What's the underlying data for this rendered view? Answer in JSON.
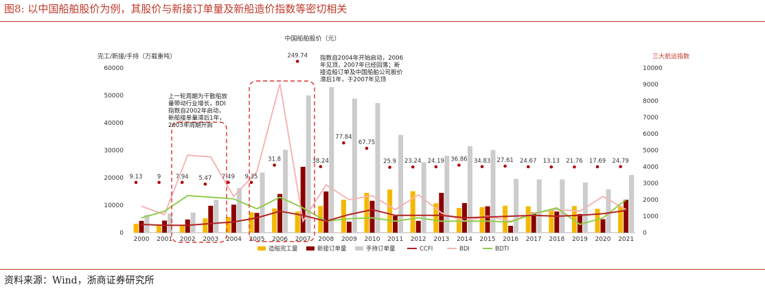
{
  "header": {
    "title": "图8:  以中国船舶股价为例，其股价与新接订单量及新船造价指数等密切相关"
  },
  "footer": {
    "source": "资料来源：Wind，浙商证券研究所"
  },
  "colors": {
    "completed": "#f5b800",
    "new_orders": "#8b0000",
    "orderbook": "#cccccc",
    "ccfi": "#b22222",
    "bdi": "#f4b6b6",
    "bdti": "#8fce4a",
    "stock_dot": "#b00000",
    "accent": "#c0392b",
    "box": "#d9302a"
  },
  "chart_data": {
    "type": "bar",
    "title": "",
    "x": [
      "2000",
      "2001",
      "2002",
      "2003",
      "2004",
      "2005",
      "2006",
      "2007",
      "2008",
      "2009",
      "2010",
      "2011",
      "2012",
      "2013",
      "2014",
      "2015",
      "2016",
      "2017",
      "2018",
      "2019",
      "2020",
      "2021"
    ],
    "ylabel_left": "完工/新接/手持（万载重吨）",
    "ylabel_right": "三大航运指数",
    "ylim_left": [
      0,
      60000
    ],
    "ylim_right": [
      0,
      10000
    ],
    "yticks_left": [
      "0",
      "10000",
      "20000",
      "30000",
      "40000",
      "50000",
      "60000"
    ],
    "yticks_right": [
      "0",
      "1000",
      "2000",
      "3000",
      "4000",
      "5000",
      "6000",
      "7000",
      "8000",
      "9000",
      "10000"
    ],
    "stock_label": "中国船舶股价（元）",
    "series": [
      {
        "name": "造船完工量",
        "kind": "bar",
        "axis": "left",
        "values": [
          3200,
          3000,
          2700,
          5200,
          5700,
          7400,
          8800,
          7700,
          9700,
          12000,
          14500,
          15700,
          15100,
          10700,
          9000,
          9300,
          9800,
          9600,
          8000,
          9700,
          8700,
          9700
        ]
      },
      {
        "name": "新接订单量",
        "kind": "bar",
        "axis": "left",
        "values": [
          4300,
          4400,
          4800,
          9800,
          10200,
          7200,
          14100,
          24000,
          15000,
          4000,
          11600,
          6100,
          4300,
          14500,
          10800,
          9600,
          2500,
          7400,
          7700,
          6800,
          4900,
          12000
        ]
      },
      {
        "name": "手持订单量",
        "kind": "bar",
        "axis": "left",
        "values": [
          6500,
          7000,
          7300,
          12000,
          16200,
          21900,
          30200,
          50000,
          53000,
          48800,
          47200,
          35600,
          25600,
          28000,
          31500,
          30100,
          19600,
          19400,
          19400,
          18300,
          15800,
          21000
        ]
      },
      {
        "name": "CCFI",
        "kind": "line",
        "axis": "right",
        "values": [
          500,
          450,
          450,
          550,
          650,
          900,
          1300,
          1050,
          700,
          1100,
          1400,
          1050,
          1050,
          1050,
          900,
          950,
          1000,
          1050,
          1000,
          1050,
          1150,
          1350
        ]
      },
      {
        "name": "BDI",
        "kind": "line",
        "axis": "right",
        "values": [
          1600,
          1100,
          4700,
          4600,
          2200,
          3700,
          9050,
          700,
          2900,
          2000,
          2250,
          1400,
          2300,
          1200,
          700,
          1000,
          700,
          1200,
          1400,
          1300,
          2200,
          1400
        ]
      },
      {
        "name": "BDTI",
        "kind": "line",
        "axis": "right",
        "values": [
          900,
          1300,
          2250,
          2150,
          2050,
          1450,
          2150,
          1500,
          700,
          850,
          900,
          700,
          900,
          700,
          700,
          700,
          650,
          1150,
          1500,
          500,
          900,
          2000
        ]
      },
      {
        "name": "stock_price",
        "kind": "scatter",
        "axis": "right",
        "values": [
          9.13,
          9,
          7.94,
          5.47,
          7.49,
          9.35,
          31.8,
          249.74,
          38.24,
          77.84,
          67.75,
          25.9,
          23.24,
          24.19,
          36.86,
          34.83,
          27.61,
          24.67,
          13.13,
          21.76,
          17.69,
          24.79
        ],
        "labels": [
          "9.13",
          "9",
          "7.94",
          "5.47",
          "7.49",
          "9.35",
          "31.8",
          "249.74",
          "38.24",
          "77.84",
          "67.75",
          "25.9",
          "23.24",
          "24.19",
          "36.86",
          "34.83",
          "27.61",
          "24.67",
          "13.13",
          "21.76",
          "17.69",
          "24.79"
        ],
        "marker_levels": [
          3050,
          3050,
          3050,
          2950,
          3050,
          3050,
          4100,
          10400,
          4010,
          5450,
          5120,
          3970,
          3990,
          4000,
          4100,
          4010,
          4040,
          4000,
          3990,
          3990,
          4000,
          4010
        ]
      }
    ],
    "annotations": [
      {
        "lines": [
          "上一轮周期为干散船放",
          "量带动行业增长，BDI",
          "指数自2002年启动，",
          "新船接单量滞后1年，",
          "2003年周期开启"
        ]
      },
      {
        "lines": [
          "指数自2004年开始启动，2006",
          "年见顶，2007年已经回落；新",
          "接造船订单及中国船舶公司股价",
          "滞后1年，于2007年见顶"
        ]
      }
    ],
    "legend_position": "bottom",
    "grid": false
  }
}
